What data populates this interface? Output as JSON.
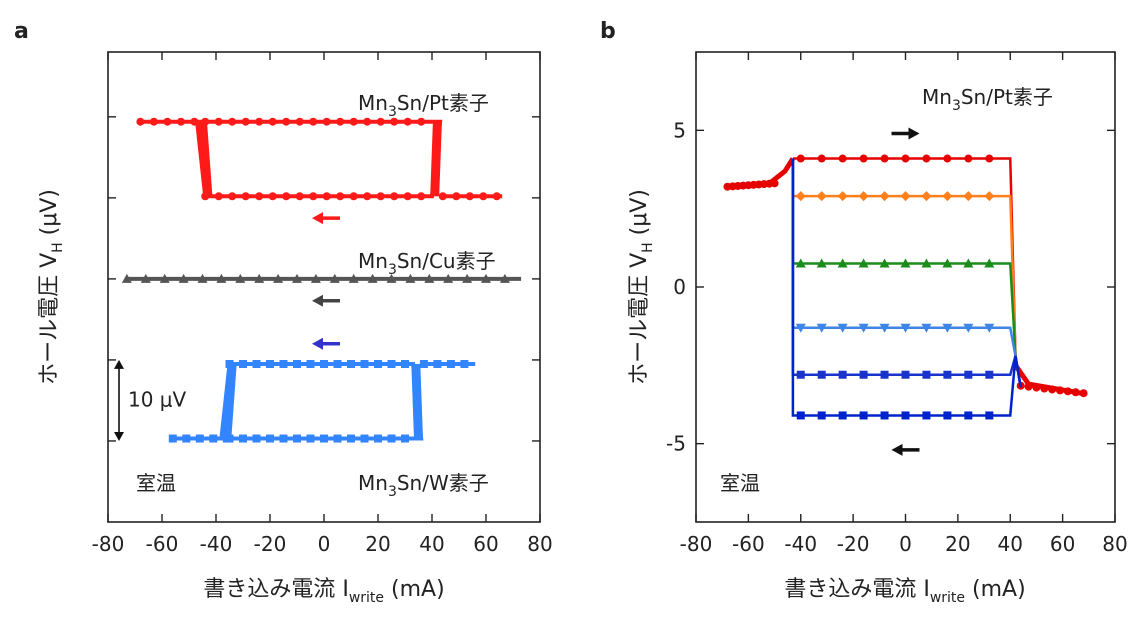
{
  "chart_data": [
    {
      "panel": "a",
      "type": "scatter",
      "xlabel": "書き込み電流 I",
      "xlabel_sub": "write",
      "xlabel_unit": "(mA)",
      "ylabel": "ホール電圧 V",
      "ylabel_sub": "H",
      "ylabel_unit": "(μV)",
      "xlim": [
        -80,
        80
      ],
      "x_ticks": [
        "-80",
        "-60",
        "-40",
        "-20",
        "0",
        "20",
        "40",
        "60",
        "80"
      ],
      "ylim": [
        -30,
        28
      ],
      "ytick_values": [
        20,
        10,
        0,
        -10,
        -20
      ],
      "scale_bar": {
        "label": "10 μV",
        "from": -10,
        "to": -20
      },
      "temperature_label": "室温",
      "series": [
        {
          "name": "Mn3Sn/Pt素子",
          "label_main": "Mn",
          "label_parts": [
            "Mn",
            "3",
            "Sn/Pt素子"
          ],
          "color": "#ff1a1a",
          "marker": "circle",
          "upper": [
            [
              -68,
              19.2
            ],
            [
              -50,
              19.3
            ],
            [
              -45,
              19.0
            ],
            [
              -43,
              15
            ],
            [
              -42,
              11
            ],
            [
              -40,
              10.3
            ],
            [
              -20,
              10.2
            ],
            [
              0,
              10.2
            ],
            [
              20,
              10.2
            ],
            [
              40,
              10.3
            ],
            [
              65,
              10.3
            ]
          ],
          "lower": [
            [
              -40,
              10.4
            ],
            [
              -30,
              10.2
            ],
            [
              0,
              10.2
            ],
            [
              30,
              10.2
            ],
            [
              35,
              19.3
            ],
            [
              38,
              19.5
            ],
            [
              20,
              19.5
            ],
            [
              0,
              19.5
            ],
            [
              -20,
              19.5
            ],
            [
              -45,
              19.5
            ],
            [
              -68,
              19.3
            ]
          ],
          "loop_x": [
            -44,
            40
          ],
          "low": 10.2,
          "high": 19.4,
          "xmin": -68,
          "xmax": 66,
          "arrow": {
            "x": 0,
            "y": 7.5,
            "dir": "left",
            "color": "#ff1a1a"
          }
        },
        {
          "name": "Mn3Sn/Cu素子",
          "label_parts": [
            "Mn",
            "3",
            "Sn/Cu素子"
          ],
          "color": "#555555",
          "marker": "triangle",
          "low": 0,
          "high": 0,
          "xmin": -73,
          "xmax": 73,
          "loop_x": [
            0,
            0
          ],
          "arrow": {
            "x": 0,
            "y": -2.7,
            "dir": "left",
            "color": "#444444"
          }
        },
        {
          "name": "Mn3Sn/W素子",
          "label_parts": [
            "Mn",
            "3",
            "Sn/W素子"
          ],
          "color": "#3385ff",
          "marker": "square",
          "low": -19.7,
          "high": -10.5,
          "xmin": -56,
          "xmax": 56,
          "loop_x": [
            -35,
            33
          ],
          "arrow": {
            "x": 0,
            "y": -8,
            "dir": "left",
            "color": "#3333cc"
          }
        }
      ]
    },
    {
      "panel": "b",
      "type": "line",
      "xlabel": "書き込み電流 I",
      "xlabel_sub": "write",
      "xlabel_unit": "(mA)",
      "ylabel": "ホール電圧 V",
      "ylabel_sub": "H",
      "ylabel_unit": "(μV)",
      "xlim": [
        -80,
        80
      ],
      "x_ticks": [
        "-80",
        "-60",
        "-40",
        "-20",
        "0",
        "20",
        "40",
        "60",
        "80"
      ],
      "ylim": [
        -7.5,
        7.5
      ],
      "y_ticks": [
        {
          "v": 5,
          "label": "5"
        },
        {
          "v": 0,
          "label": "0"
        },
        {
          "v": -5,
          "label": "-5"
        }
      ],
      "temperature_label": "室温",
      "device_label_parts": [
        "Mn",
        "3",
        "Sn/Pt素子"
      ],
      "arrows": [
        {
          "x": 0,
          "y": 4.9,
          "dir": "right"
        },
        {
          "x": 0,
          "y": -5.2,
          "dir": "left"
        }
      ],
      "series": [
        {
          "color": "#e60000",
          "marker": "circle",
          "level": 4.1
        },
        {
          "color": "#ff7f1a",
          "marker": "diamond",
          "level": 2.9
        },
        {
          "color": "#1a8c1a",
          "marker": "triangle",
          "level": 0.75
        },
        {
          "color": "#3d85e6",
          "marker": "triangle-down",
          "level": -1.3
        },
        {
          "color": "#1a33cc",
          "marker": "square",
          "level": -2.8
        },
        {
          "color": "#0022cc",
          "marker": "square",
          "level": -4.1
        }
      ],
      "reset": {
        "from_x": -68,
        "y": 3.2,
        "to_x": 42,
        "end_x": 68,
        "end_y": -3.4
      }
    }
  ]
}
